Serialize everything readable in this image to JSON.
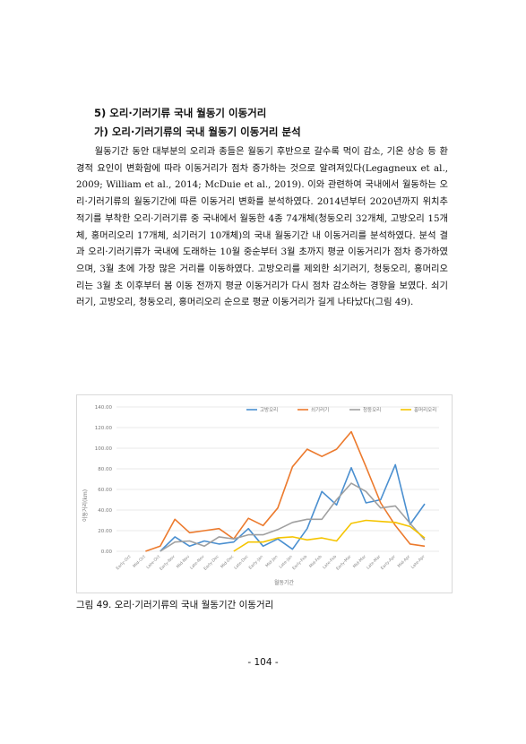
{
  "section_heading": "5) 오리·기러기류 국내 월동기 이동거리",
  "subsection_heading": "가) 오리·기러기류의 국내 월동기 이동거리 분석",
  "paragraph": "월동기간 동안 대부분의 오리과 종들은 월동기 후반으로 갈수록 먹이 감소, 기온 상승 등 환경적 요인이 변화함에 따라 이동거리가 점차 증가하는 것으로 알려져있다(Legagneux et al., 2009; William et al., 2014; McDuie et al., 2019). 이와 관련하여 국내에서 월동하는 오리·기러기류의 월동기간에 따른 이동거리 변화를 분석하였다. 2014년부터 2020년까지 위치추적기를 부착한 오리·기러기류 중 국내에서 월동한 4종 74개체(청둥오리 32개체, 고방오리 15개체, 홍머리오리 17개체, 쇠기러기 10개체)의 국내 월동기간 내 이동거리를 분석하였다. 분석 결과 오리·기러기류가 국내에 도래하는 10월 중순부터 3월 초까지 평균 이동거리가 점차 증가하였으며, 3월 초에 가장 많은 거리를 이동하였다. 고방오리를 제외한 쇠기러기, 청둥오리, 홍머리오리는 3월 초 이후부터 봄 이동 전까지 평균 이동거리가 다시 점차 감소하는 경향을 보였다. 쇠기러기, 고방오리, 청둥오리, 홍머리오리 순으로 평균 이동거리가 길게 나타났다(그림 49).",
  "caption": "그림 49. 오리·기러기류의 국내 월동기간 이동거리",
  "page_number": "- 104 -",
  "chart_data": {
    "type": "line",
    "xlabel": "월동기간",
    "ylabel": "이동거리(km)",
    "ylim": [
      0,
      140
    ],
    "yticks": [
      "0.00",
      "20.00",
      "40.00",
      "60.00",
      "80.00",
      "100.00",
      "120.00",
      "140.00"
    ],
    "grid": true,
    "legend_position": "top-right",
    "categories": [
      "Early-Oct",
      "Mid-Oct",
      "Late-Oct",
      "Early-Nov",
      "Mid-Nov",
      "Late-Nov",
      "Early-Dec",
      "Mid-Dec",
      "Late-Dec",
      "Early-Jan",
      "Mid-Jan",
      "Late-Jan",
      "Early-Feb",
      "Mid-Feb",
      "Late-Feb",
      "Early-Mar",
      "Mid-Mar",
      "Late-Mar",
      "Early-Apr",
      "Mid-Apr",
      "Late-Apr"
    ],
    "series": [
      {
        "name": "고방오리",
        "color": "#4a8fd0",
        "values": [
          null,
          null,
          0,
          14,
          5,
          10,
          7,
          9,
          22,
          5,
          12,
          2,
          22,
          58,
          45,
          81,
          47,
          50,
          84,
          26,
          46
        ]
      },
      {
        "name": "쇠기러기",
        "color": "#ec7a2d",
        "values": [
          null,
          0,
          5,
          31,
          18,
          20,
          22,
          12,
          32,
          25,
          42,
          82,
          99,
          92,
          99,
          116,
          82,
          47,
          25,
          7,
          5
        ]
      },
      {
        "name": "청둥오리",
        "color": "#a0a0a0",
        "values": [
          null,
          null,
          0,
          9,
          10,
          5,
          14,
          12,
          16,
          16,
          21,
          28,
          31,
          31,
          50,
          66,
          58,
          42,
          44,
          27,
          11
        ]
      },
      {
        "name": "홍머리오리",
        "color": "#f5c400",
        "values": [
          null,
          null,
          null,
          null,
          null,
          null,
          null,
          0,
          9,
          9,
          13,
          14,
          11,
          13,
          10,
          27,
          30,
          29,
          28,
          24,
          13
        ]
      }
    ]
  }
}
